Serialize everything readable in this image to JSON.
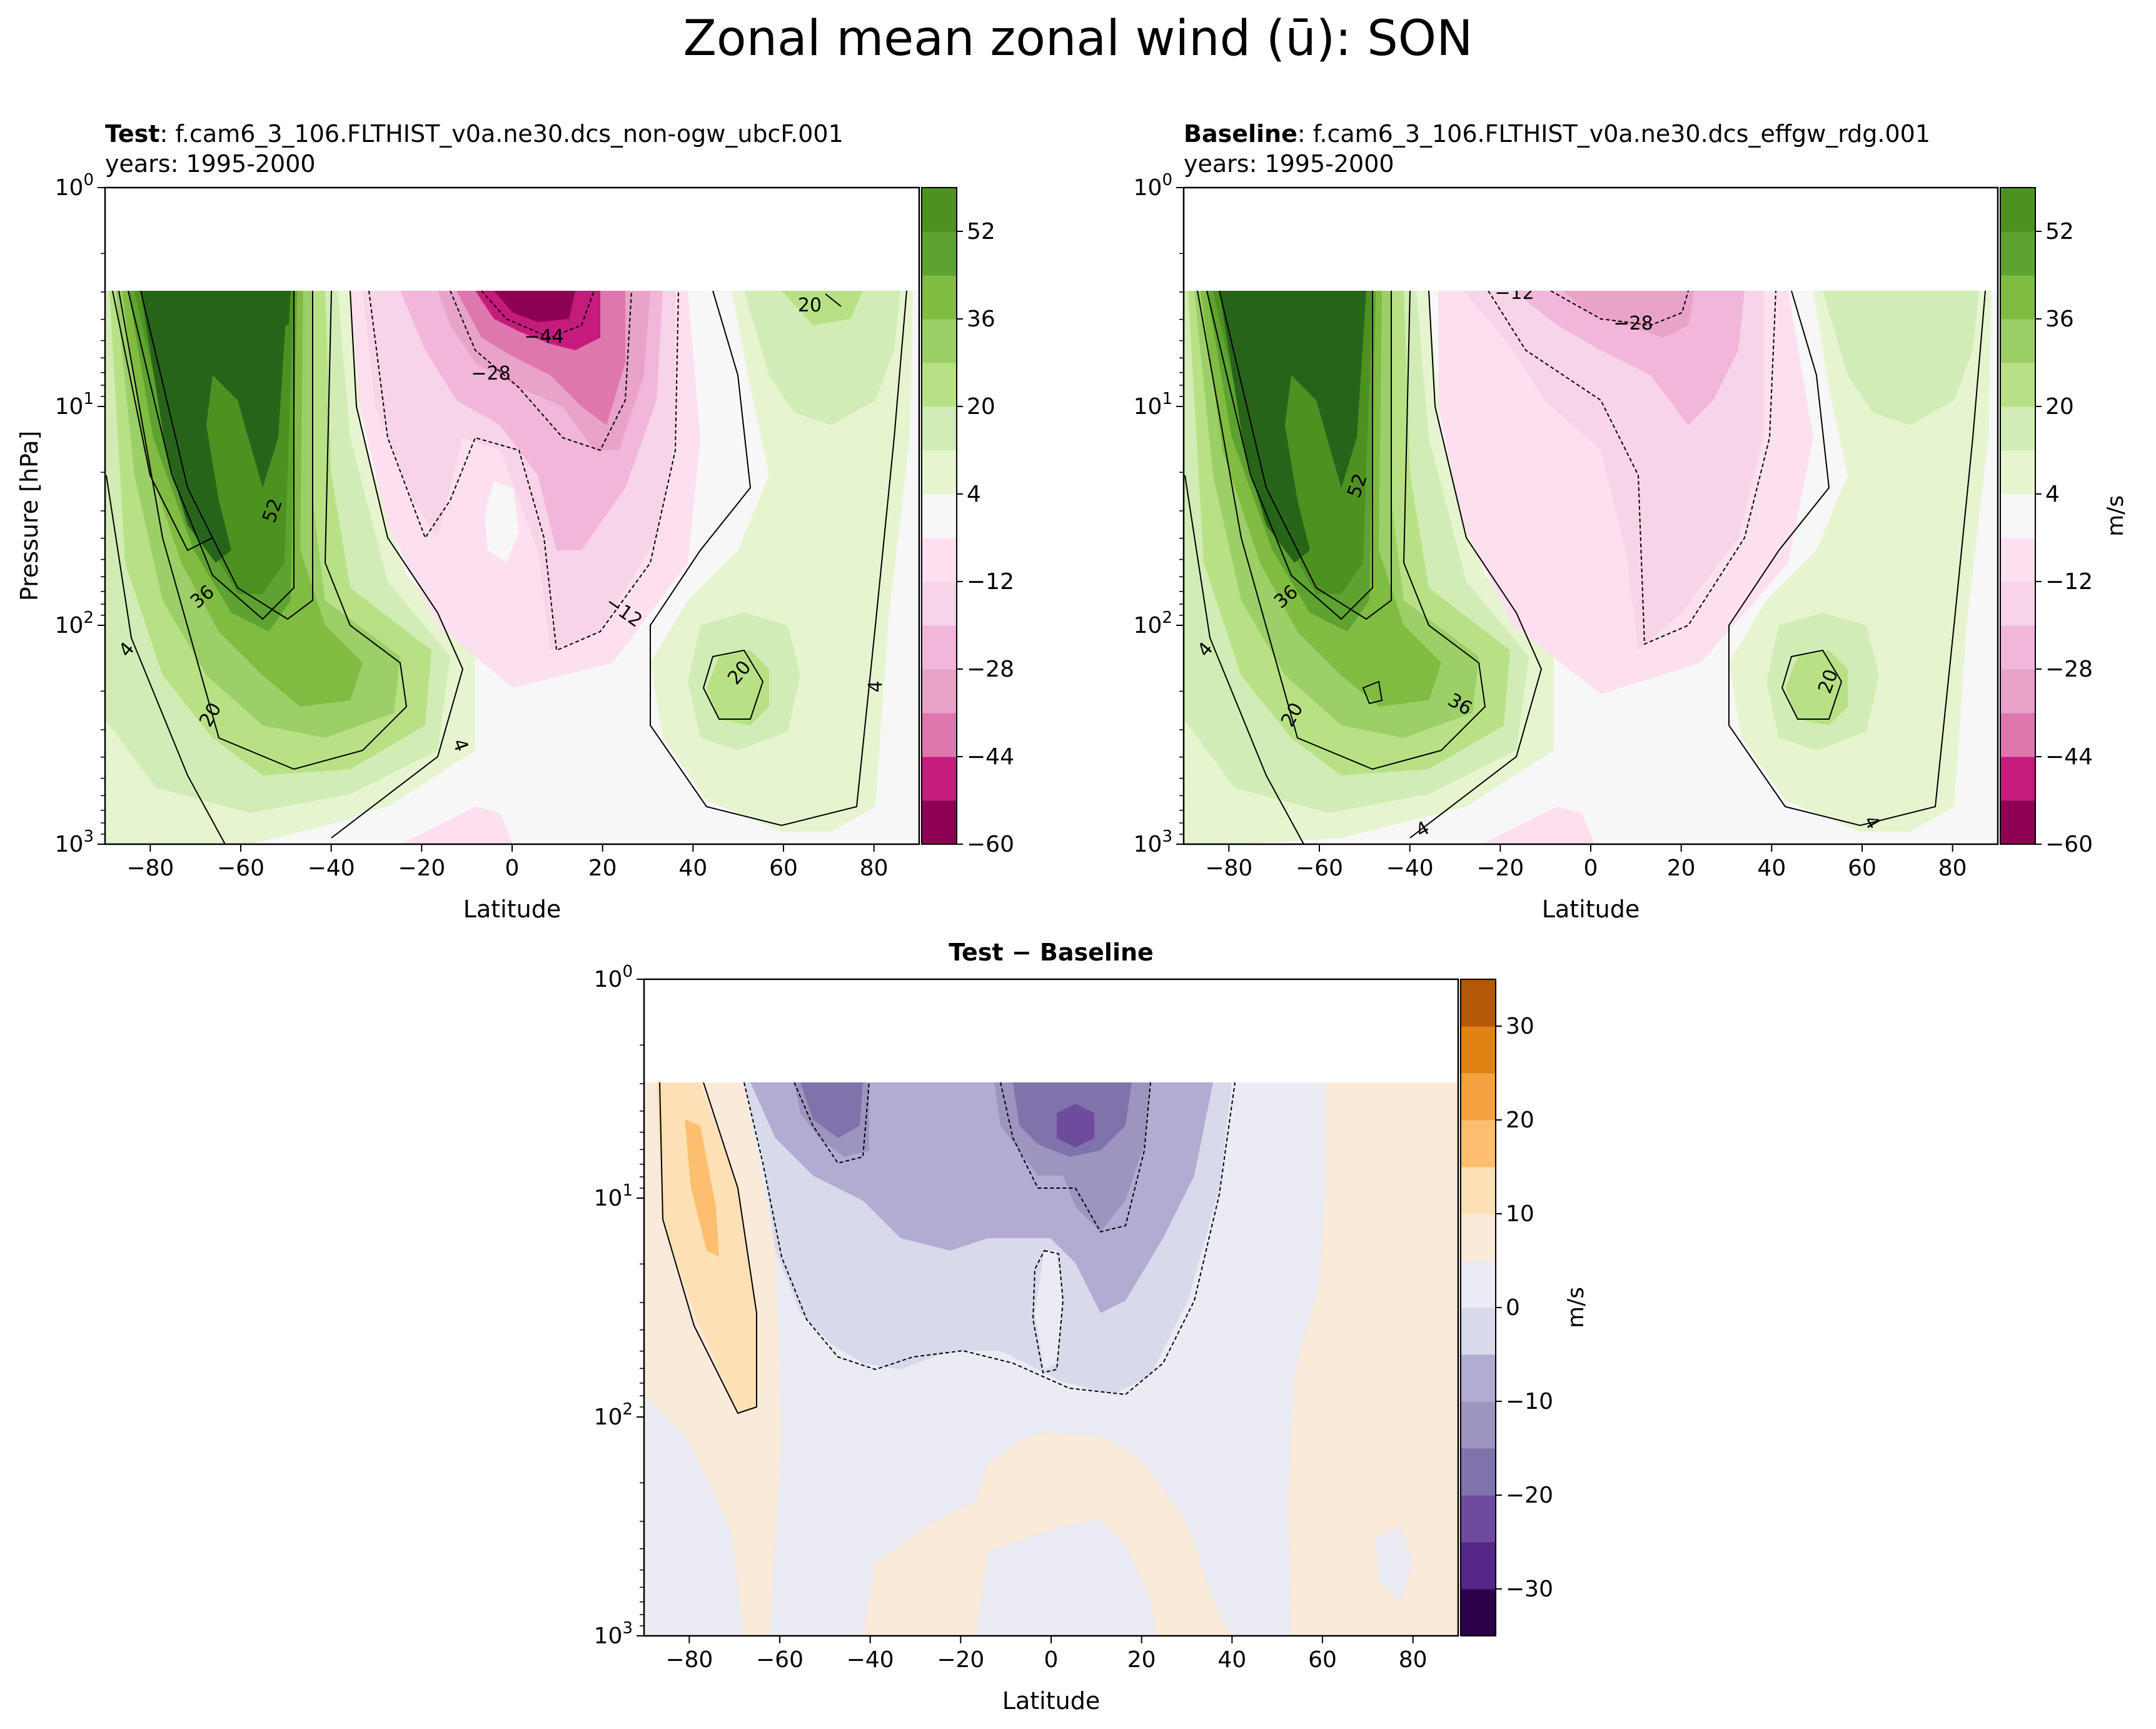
{
  "figure_title": "Zonal mean zonal wind (ū): SON",
  "colors": {
    "prgn": [
      "#8e0152",
      "#c51b7d",
      "#de77ae",
      "#e9a3c9",
      "#f1b6da",
      "#f7d4e8",
      "#fde0ef",
      "#f7f7f7",
      "#e6f5d0",
      "#d2ecb5",
      "#b8e186",
      "#9ccf68",
      "#7fbc41",
      "#5ea231",
      "#4d9221",
      "#276419"
    ],
    "puor": [
      "#2d004b",
      "#542788",
      "#6e4b9d",
      "#8073ac",
      "#9e94c0",
      "#b2abd2",
      "#d8daeb",
      "#ebebf4",
      "#f9ead9",
      "#fee0b6",
      "#fdbf6f",
      "#f4a23f",
      "#e08214",
      "#b35806",
      "#8f4a0a"
    ],
    "axis": "#000000",
    "contour": "#000000"
  },
  "chart_data": [
    {
      "id": "test",
      "type": "contour",
      "title_bold": "Test",
      "title_rest": ": f.cam6_3_106.FLTHIST_v0a.ne30.dcs_non-ogw_ubcF.001",
      "subtitle": "years: 1995-2000",
      "xlabel": "Latitude",
      "ylabel": "Pressure [hPa]",
      "xlim": [
        -90,
        90
      ],
      "ylim_hpa": [
        1000,
        1
      ],
      "yscale": "log",
      "data_top_hpa": 3,
      "xticks": [
        "−80",
        "−60",
        "−40",
        "−20",
        "0",
        "20",
        "40",
        "60",
        "80"
      ],
      "yticks": [
        {
          "base": "10",
          "exp": "0"
        },
        {
          "base": "10",
          "exp": "1"
        },
        {
          "base": "10",
          "exp": "2"
        },
        {
          "base": "10",
          "exp": "3"
        }
      ],
      "colorbar": {
        "levels": [
          -60,
          -52,
          -44,
          -36,
          -28,
          -20,
          -12,
          -4,
          4,
          12,
          20,
          28,
          36,
          44,
          52,
          60
        ],
        "ticks": [
          "52",
          "36",
          "20",
          "4",
          "−12",
          "−28",
          "−44",
          "−60"
        ],
        "label": ""
      },
      "contour_labels": [
        "52",
        "36",
        "20",
        "4",
        "4",
        "4",
        "20",
        "20",
        "−44",
        "−28",
        "−12"
      ],
      "features": {
        "sh_jet_max": {
          "lat": -55,
          "p": 40,
          "value": 60
        },
        "subtropical_jet": {
          "lat": -30,
          "p": 200,
          "value": 36
        },
        "nh_jet": {
          "lat": 47,
          "p": 200,
          "value": 24
        },
        "nh_strat": {
          "lat": 63,
          "p": 3,
          "value": 22
        },
        "trop_easterly": {
          "lat": 8,
          "p": 3,
          "value": -50
        }
      }
    },
    {
      "id": "baseline",
      "type": "contour",
      "title_bold": "Baseline",
      "title_rest": ": f.cam6_3_106.FLTHIST_v0a.ne30.dcs_effgw_rdg.001",
      "subtitle": "years: 1995-2000",
      "xlabel": "Latitude",
      "ylabel": "",
      "xlim": [
        -90,
        90
      ],
      "ylim_hpa": [
        1000,
        1
      ],
      "yscale": "log",
      "data_top_hpa": 3,
      "xticks": [
        "−80",
        "−60",
        "−40",
        "−20",
        "0",
        "20",
        "40",
        "60",
        "80"
      ],
      "yticks": [
        {
          "base": "10",
          "exp": "0"
        },
        {
          "base": "10",
          "exp": "1"
        },
        {
          "base": "10",
          "exp": "2"
        },
        {
          "base": "10",
          "exp": "3"
        }
      ],
      "colorbar": {
        "levels": [
          -60,
          -52,
          -44,
          -36,
          -28,
          -20,
          -12,
          -4,
          4,
          12,
          20,
          28,
          36,
          44,
          52,
          60
        ],
        "ticks": [
          "52",
          "36",
          "20",
          "4",
          "−12",
          "−28",
          "−44",
          "−60"
        ],
        "label": "m/s"
      },
      "contour_labels": [
        "52",
        "36",
        "20",
        "4",
        "4",
        "4",
        "20",
        "36",
        "−12",
        "−28"
      ],
      "features": {
        "sh_jet_max": {
          "lat": -55,
          "p": 40,
          "value": 60
        },
        "subtropical_jet": {
          "lat": -31,
          "p": 200,
          "value": 38
        },
        "nh_jet": {
          "lat": 47,
          "p": 200,
          "value": 24
        },
        "trop_easterly": {
          "lat": 10,
          "p": 3,
          "value": -32
        }
      }
    },
    {
      "id": "diff",
      "type": "contour",
      "title_bold": "Test − Baseline",
      "title_rest": "",
      "subtitle": "",
      "xlabel": "Latitude",
      "ylabel": "",
      "xlim": [
        -90,
        90
      ],
      "ylim_hpa": [
        1000,
        1
      ],
      "yscale": "log",
      "data_top_hpa": 3,
      "xticks": [
        "−80",
        "−60",
        "−40",
        "−20",
        "0",
        "20",
        "40",
        "60",
        "80"
      ],
      "yticks": [
        {
          "base": "10",
          "exp": "0"
        },
        {
          "base": "10",
          "exp": "1"
        },
        {
          "base": "10",
          "exp": "2"
        },
        {
          "base": "10",
          "exp": "3"
        }
      ],
      "colorbar": {
        "levels": [
          -35,
          -30,
          -25,
          -20,
          -15,
          -10,
          -5,
          0,
          5,
          10,
          15,
          20,
          25,
          30,
          35
        ],
        "ticks": [
          "30",
          "20",
          "10",
          "0",
          "−10",
          "−20",
          "−30"
        ],
        "label": "m/s"
      },
      "contour_labels": [],
      "features": {
        "sh_positive": {
          "lat": -80,
          "p": 8,
          "value": 12
        },
        "strat_negative": {
          "lat": -48,
          "p": 4,
          "value": -17
        },
        "eq_negative": {
          "lat": 0,
          "p": 5,
          "value": -22
        }
      }
    }
  ]
}
